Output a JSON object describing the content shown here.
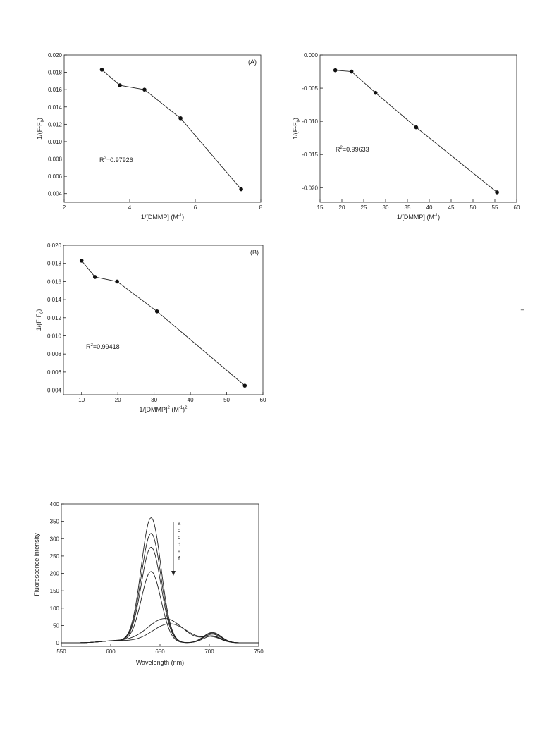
{
  "chart_data": [
    {
      "type": "line",
      "panel_label": "(A)",
      "x": [
        3.15,
        3.7,
        4.45,
        5.55,
        7.4
      ],
      "series": [
        {
          "values": [
            0.0183,
            0.0165,
            0.016,
            0.0127,
            0.0045
          ]
        }
      ],
      "xlim": [
        2,
        8
      ],
      "ylim": [
        0.003,
        0.02
      ],
      "xticks": [
        "2",
        "4",
        "6",
        "8"
      ],
      "yticks": [
        "0.020",
        "0.018",
        "0.016",
        "0.014",
        "0.012",
        "0.010",
        "0.008",
        "0.006",
        "0.004"
      ],
      "ylabel": {
        "main": "1/(F-F",
        "sub": "0",
        "end": ")"
      },
      "xlabel": {
        "main": "1/[DMMP] (M",
        "sup": "-1",
        "end": ")"
      },
      "annotation": {
        "pre": "R",
        "sup": "2",
        "post": "=0.97926"
      }
    },
    {
      "type": "line",
      "panel_label": "",
      "x": [
        18.5,
        22.2,
        27.7,
        37.0,
        55.5
      ],
      "series": [
        {
          "values": [
            -0.0023,
            -0.0025,
            -0.0057,
            -0.0109,
            -0.0207
          ]
        }
      ],
      "xlim": [
        15,
        60
      ],
      "ylim": [
        -0.0222,
        0.0
      ],
      "xticks": [
        "15",
        "20",
        "25",
        "30",
        "35",
        "40",
        "45",
        "50",
        "55",
        "60"
      ],
      "yticks": [
        "0.000",
        "-0.005",
        "-0.010",
        "-0.015",
        "-0.020"
      ],
      "ylabel": {
        "main": "1/(F-F",
        "sub": "0",
        "end": ")"
      },
      "xlabel": {
        "main": "1/[DMMP] (M",
        "sup": "-1",
        "end": ")"
      },
      "annotation": {
        "pre": "R",
        "sup": "2",
        "post": "=0.99633"
      }
    },
    {
      "type": "line",
      "panel_label": "(B)",
      "x": [
        10,
        13.7,
        19.8,
        30.8,
        55
      ],
      "series": [
        {
          "values": [
            0.0183,
            0.0165,
            0.016,
            0.0127,
            0.0045
          ]
        }
      ],
      "xlim": [
        5,
        60
      ],
      "ylim": [
        0.0035,
        0.02
      ],
      "xticks": [
        "10",
        "20",
        "30",
        "40",
        "50",
        "60"
      ],
      "yticks": [
        "0.020",
        "0.018",
        "0.016",
        "0.014",
        "0.012",
        "0.010",
        "0.008",
        "0.006",
        "0.004"
      ],
      "ylabel": {
        "main": "1/(F-F",
        "sub": "0",
        "end": ")"
      },
      "xlabel": {
        "main": "1/[DMMP]",
        "sup": "2",
        "mid": " (M",
        "sup2": "-1",
        "end": ")",
        "sup3": "2"
      },
      "annotation": {
        "pre": "R",
        "sup": "2",
        "post": "=0.99418"
      }
    },
    {
      "type": "line",
      "panel_label": "",
      "xlim": [
        550,
        750
      ],
      "ylim": [
        -10,
        400
      ],
      "xticks": [
        "550",
        "600",
        "650",
        "700",
        "750"
      ],
      "yticks": [
        "400",
        "350",
        "300",
        "250",
        "200",
        "150",
        "100",
        "50",
        "0"
      ],
      "xlabel": "Wavelength (nm)",
      "ylabel": "Fluorescence intensity",
      "legend_letters": [
        "a",
        "b",
        "c",
        "d",
        "e",
        "f"
      ],
      "series": [
        {
          "peak": 360,
          "center": 641,
          "shoulder": 30
        },
        {
          "peak": 315,
          "center": 641,
          "shoulder": 28
        },
        {
          "peak": 275,
          "center": 641,
          "shoulder": 25
        },
        {
          "peak": 205,
          "center": 641,
          "shoulder": 20
        },
        {
          "peak": 70,
          "center": 655,
          "shoulder": 18
        },
        {
          "peak": 55,
          "center": 660,
          "shoulder": 15
        }
      ]
    }
  ],
  "page_mark": "="
}
